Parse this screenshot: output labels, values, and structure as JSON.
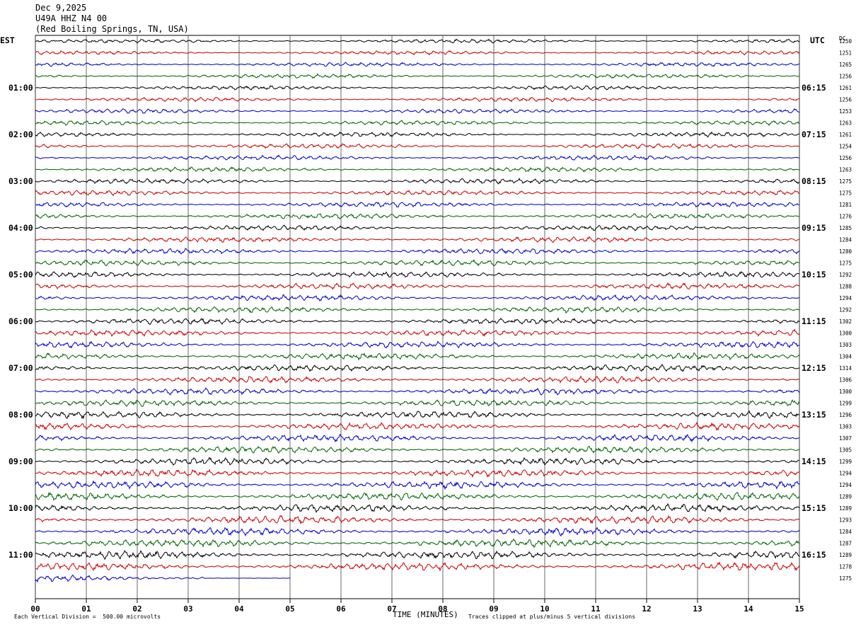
{
  "header": {
    "date": "Dec 9,2025",
    "station": "U49A HHZ N4 00",
    "location": "(Red Boiling Springs, TN, USA)"
  },
  "left_zone_label": "EST",
  "right_zone_label": "UTC",
  "dc_label": "DC",
  "chart_data": {
    "type": "line",
    "title": "Dec 9,2025 U49A HHZ N4 00 (Red Boiling Springs, TN, USA)",
    "xlabel": "TIME (MINUTES)",
    "x_ticks": [
      "00",
      "01",
      "02",
      "03",
      "04",
      "05",
      "06",
      "07",
      "08",
      "09",
      "10",
      "11",
      "12",
      "13",
      "14",
      "15"
    ],
    "xlim": [
      0,
      15
    ],
    "grid": true,
    "trace_colors": [
      "#000000",
      "#cc0000",
      "#0000cc",
      "#006400"
    ],
    "left_time_labels": [
      "01:00",
      "02:00",
      "03:00",
      "04:00",
      "05:00",
      "06:00",
      "07:00",
      "08:00",
      "09:00",
      "10:00",
      "11:00"
    ],
    "right_time_labels": [
      "06:15",
      "07:15",
      "08:15",
      "09:15",
      "10:15",
      "11:15",
      "12:15",
      "13:15",
      "14:15",
      "15:15",
      "16:15"
    ],
    "dc_offsets": [
      1250,
      1251,
      1265,
      1256,
      1261,
      1256,
      1253,
      1263,
      1261,
      1254,
      1256,
      1263,
      1275,
      1275,
      1281,
      1276,
      1285,
      1284,
      1280,
      1275,
      1292,
      1288,
      1294,
      1292,
      1302,
      1300,
      1303,
      1304,
      1314,
      1306,
      1300,
      1299,
      1296,
      1303,
      1307,
      1305,
      1299,
      1294,
      1294,
      1289,
      1289,
      1293,
      1284,
      1287,
      1289,
      1278,
      1275
    ],
    "last_trace_end_minute": 5.0,
    "footer_scale": "Each Vertical Division =  500.00 microvolts",
    "footer_clip": "Traces clipped at plus/minus 5 vertical divisions"
  },
  "footer": {
    "scale_text": "Each Vertical Division =  500.00 microvolts",
    "xlabel": "TIME (MINUTES)",
    "clip_text": "Traces clipped at plus/minus 5 vertical divisions"
  }
}
